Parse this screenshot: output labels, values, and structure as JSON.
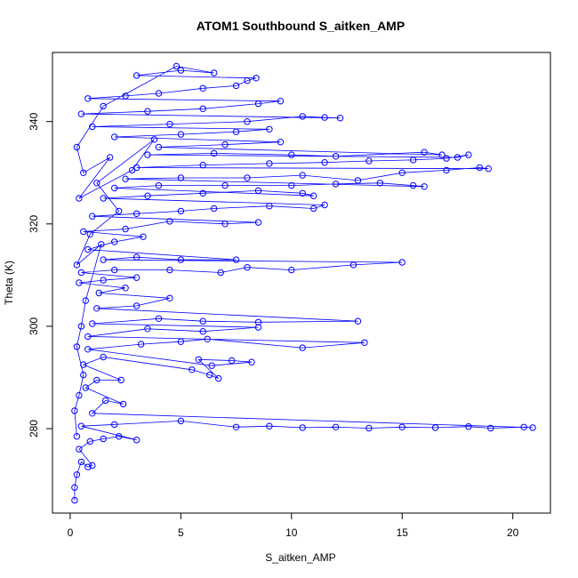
{
  "chart_data": {
    "type": "scatter",
    "title": "ATOM1 Southbound S_aitken_AMP",
    "xlabel": "S_aitken_AMP",
    "ylabel": "Theta (K)",
    "xlim": [
      -0.8,
      21.7
    ],
    "ylim": [
      263.5,
      353.5
    ],
    "x_ticks": [
      "0",
      "5",
      "10",
      "15",
      "20"
    ],
    "y_ticks": [
      "280",
      "300",
      "320",
      "340"
    ],
    "grid": false,
    "legend": "none",
    "marker": "open-circle",
    "connected": true,
    "series": [
      {
        "color": "#0000ff",
        "points": [
          [
            0.2,
            266.0
          ],
          [
            0.2,
            268.5
          ],
          [
            0.3,
            271.0
          ],
          [
            0.5,
            273.5
          ],
          [
            0.8,
            272.5
          ],
          [
            1.0,
            272.8
          ],
          [
            0.4,
            276.0
          ],
          [
            0.9,
            277.5
          ],
          [
            1.5,
            278.0
          ],
          [
            2.2,
            278.5
          ],
          [
            3.0,
            277.8
          ],
          [
            0.5,
            280.5
          ],
          [
            2.0,
            280.8
          ],
          [
            5.0,
            281.5
          ],
          [
            7.5,
            280.3
          ],
          [
            9.0,
            280.5
          ],
          [
            10.5,
            280.2
          ],
          [
            12.0,
            280.3
          ],
          [
            13.5,
            280.1
          ],
          [
            15.0,
            280.3
          ],
          [
            16.5,
            280.2
          ],
          [
            18.0,
            280.4
          ],
          [
            19.0,
            280.1
          ],
          [
            20.5,
            280.3
          ],
          [
            20.9,
            280.2
          ],
          [
            1.0,
            283.0
          ],
          [
            1.6,
            285.5
          ],
          [
            2.4,
            284.8
          ],
          [
            0.7,
            288.0
          ],
          [
            1.2,
            289.5
          ],
          [
            2.3,
            289.5
          ],
          [
            0.6,
            292.5
          ],
          [
            1.5,
            294.0
          ],
          [
            5.5,
            291.5
          ],
          [
            6.3,
            290.5
          ],
          [
            6.7,
            289.8
          ],
          [
            5.8,
            293.5
          ],
          [
            7.3,
            293.3
          ],
          [
            8.2,
            293.0
          ],
          [
            6.4,
            292.3
          ],
          [
            0.8,
            295.5
          ],
          [
            3.2,
            296.5
          ],
          [
            5.0,
            297.0
          ],
          [
            6.2,
            297.5
          ],
          [
            10.5,
            295.8
          ],
          [
            13.3,
            296.8
          ],
          [
            0.8,
            298.0
          ],
          [
            3.5,
            299.5
          ],
          [
            6.0,
            299.0
          ],
          [
            8.5,
            299.8
          ],
          [
            1.0,
            300.5
          ],
          [
            4.0,
            301.5
          ],
          [
            6.0,
            301.0
          ],
          [
            8.5,
            300.8
          ],
          [
            13.0,
            301.0
          ],
          [
            1.2,
            303.5
          ],
          [
            3.0,
            304.0
          ],
          [
            4.5,
            305.5
          ],
          [
            1.3,
            306.5
          ],
          [
            2.5,
            307.5
          ],
          [
            0.4,
            308.5
          ],
          [
            1.5,
            309.0
          ],
          [
            3.0,
            309.5
          ],
          [
            0.5,
            310.5
          ],
          [
            2.0,
            311.0
          ],
          [
            4.5,
            311.0
          ],
          [
            6.8,
            310.5
          ],
          [
            8.0,
            311.5
          ],
          [
            10.0,
            311.0
          ],
          [
            12.8,
            312.0
          ],
          [
            15.0,
            312.5
          ],
          [
            1.5,
            313.0
          ],
          [
            3.0,
            313.5
          ],
          [
            5.0,
            313.0
          ],
          [
            7.5,
            313.0
          ],
          [
            0.8,
            315.0
          ],
          [
            2.0,
            316.5
          ],
          [
            3.3,
            317.5
          ],
          [
            0.6,
            318.5
          ],
          [
            2.5,
            319.0
          ],
          [
            4.5,
            320.5
          ],
          [
            7.0,
            320.0
          ],
          [
            8.5,
            320.3
          ],
          [
            1.0,
            321.5
          ],
          [
            3.0,
            322.0
          ],
          [
            5.0,
            322.5
          ],
          [
            6.5,
            323.0
          ],
          [
            9.0,
            323.5
          ],
          [
            11.0,
            323.0
          ],
          [
            11.5,
            323.7
          ],
          [
            1.5,
            325.0
          ],
          [
            3.5,
            325.5
          ],
          [
            6.0,
            326.0
          ],
          [
            8.5,
            326.5
          ],
          [
            10.5,
            326.0
          ],
          [
            11.0,
            325.5
          ],
          [
            2.0,
            327.0
          ],
          [
            4.0,
            327.5
          ],
          [
            7.0,
            327.5
          ],
          [
            10.0,
            327.5
          ],
          [
            12.0,
            327.8
          ],
          [
            14.0,
            328.0
          ],
          [
            15.5,
            327.5
          ],
          [
            16.0,
            327.3
          ],
          [
            2.5,
            328.8
          ],
          [
            5.0,
            329.0
          ],
          [
            8.0,
            329.0
          ],
          [
            10.5,
            329.5
          ],
          [
            13.0,
            328.5
          ],
          [
            15.0,
            330.0
          ],
          [
            17.0,
            330.5
          ],
          [
            18.5,
            331.0
          ],
          [
            18.9,
            330.8
          ],
          [
            3.0,
            331.0
          ],
          [
            6.0,
            331.5
          ],
          [
            9.0,
            331.8
          ],
          [
            11.5,
            332.0
          ],
          [
            13.5,
            332.3
          ],
          [
            15.5,
            332.5
          ],
          [
            17.0,
            332.8
          ],
          [
            18.0,
            333.5
          ],
          [
            17.5,
            333.0
          ],
          [
            3.5,
            333.5
          ],
          [
            6.5,
            333.8
          ],
          [
            10.0,
            333.5
          ],
          [
            12.0,
            333.2
          ],
          [
            16.0,
            334.0
          ],
          [
            16.8,
            333.5
          ],
          [
            4.0,
            335.0
          ],
          [
            7.0,
            335.5
          ],
          [
            9.5,
            336.0
          ],
          [
            2.0,
            337.0
          ],
          [
            5.0,
            337.5
          ],
          [
            7.5,
            338.0
          ],
          [
            9.0,
            338.5
          ],
          [
            1.0,
            339.0
          ],
          [
            4.5,
            339.5
          ],
          [
            8.0,
            340.0
          ],
          [
            10.5,
            341.0
          ],
          [
            11.5,
            340.8
          ],
          [
            12.2,
            340.7
          ],
          [
            0.5,
            341.5
          ],
          [
            3.5,
            342.0
          ],
          [
            6.0,
            342.5
          ],
          [
            8.5,
            343.5
          ],
          [
            9.5,
            344.0
          ],
          [
            0.8,
            344.5
          ],
          [
            2.5,
            345.0
          ],
          [
            4.0,
            345.5
          ],
          [
            6.0,
            346.5
          ],
          [
            7.5,
            347.0
          ],
          [
            8.0,
            348.0
          ],
          [
            8.4,
            348.5
          ],
          [
            3.0,
            349.0
          ],
          [
            5.0,
            350.0
          ],
          [
            6.5,
            349.5
          ],
          [
            4.8,
            350.8
          ],
          [
            1.5,
            343.0
          ],
          [
            0.3,
            335.0
          ],
          [
            0.6,
            330.0
          ],
          [
            1.8,
            333.0
          ],
          [
            0.4,
            325.0
          ],
          [
            2.8,
            330.5
          ],
          [
            3.8,
            336.5
          ],
          [
            1.2,
            328.0
          ],
          [
            2.2,
            322.5
          ],
          [
            0.9,
            318.0
          ],
          [
            0.3,
            312.0
          ],
          [
            1.4,
            316.0
          ],
          [
            0.7,
            305.0
          ],
          [
            0.5,
            300.0
          ],
          [
            0.3,
            296.0
          ],
          [
            0.6,
            290.5
          ],
          [
            0.4,
            286.5
          ],
          [
            0.2,
            283.5
          ],
          [
            0.3,
            278.5
          ]
        ]
      }
    ]
  }
}
